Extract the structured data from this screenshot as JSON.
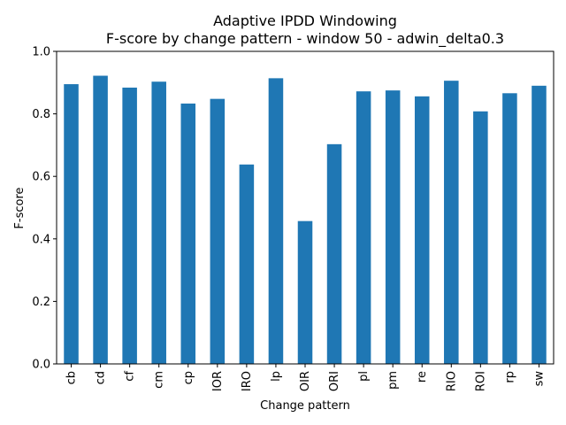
{
  "chart_data": {
    "type": "bar",
    "title": "Adaptive IPDD Windowing",
    "subtitle": "F-score by change pattern - window 50 - adwin_delta0.3",
    "xlabel": "Change pattern",
    "ylabel": "F-score",
    "ylim": [
      0,
      1.0
    ],
    "yticks": [
      "0.0",
      "0.2",
      "0.4",
      "0.6",
      "0.8",
      "1.0"
    ],
    "grid": false,
    "legend": "none",
    "bar_color": "#1f77b4",
    "categories": [
      "cb",
      "cd",
      "cf",
      "cm",
      "cp",
      "IOR",
      "IRO",
      "lp",
      "OIR",
      "ORI",
      "pl",
      "pm",
      "re",
      "RIO",
      "ROI",
      "rp",
      "sw"
    ],
    "values": [
      0.895,
      0.922,
      0.884,
      0.903,
      0.833,
      0.848,
      0.638,
      0.914,
      0.457,
      0.703,
      0.872,
      0.875,
      0.856,
      0.906,
      0.808,
      0.866,
      0.89
    ]
  }
}
